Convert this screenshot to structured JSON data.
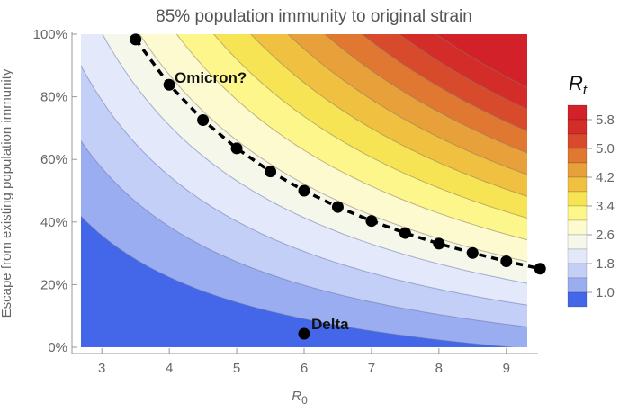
{
  "chart_data": {
    "type": "heatmap",
    "subtype": "filled-contour",
    "title": "85% population immunity to original strain",
    "xlabel": "R",
    "xlabel_subscript": "0",
    "ylabel": "Escape from existing population immunity",
    "xlim": [
      2.69,
      9.31
    ],
    "ylim": [
      0,
      1
    ],
    "x_ticks": [
      3,
      4,
      5,
      6,
      7,
      8,
      9
    ],
    "x_tick_labels": [
      "3",
      "4",
      "5",
      "6",
      "7",
      "8",
      "9"
    ],
    "y_ticks": [
      0,
      0.2,
      0.4,
      0.6,
      0.8,
      1.0
    ],
    "y_tick_labels": [
      "0%",
      "20%",
      "40%",
      "60%",
      "80%",
      "100%"
    ],
    "population_immunity": 0.85,
    "function": "Rt = R0 * (1 - immunity * (1 - escape))",
    "contour_levels": [
      1.36,
      1.91,
      2.46,
      3.01,
      3.56,
      4.11,
      4.66,
      5.21,
      5.76,
      6.31,
      6.86,
      7.41,
      7.96
    ],
    "band_colors": [
      "#4466e8",
      "#9aadf0",
      "#c3cff6",
      "#e3e9fb",
      "#f5f7ea",
      "#fdfad0",
      "#fdf68a",
      "#f7e454",
      "#f0c040",
      "#e8a03a",
      "#e07832",
      "#d84a2c",
      "#d42c28",
      "#d32129"
    ],
    "legend": {
      "title": "R",
      "title_subscript": "t",
      "tick_labels": [
        "5.8",
        "5.0",
        "4.2",
        "3.4",
        "2.6",
        "1.8",
        "1.0"
      ],
      "placement": "right"
    },
    "series": [
      {
        "name": "Omicron?",
        "style": "dashed-line-with-dots",
        "Rt": 3.45,
        "x": [
          3.5,
          4.0,
          4.5,
          5.0,
          5.5,
          6.0,
          6.5,
          7.0,
          7.5,
          8.0,
          8.5,
          9.0,
          9.5
        ]
      },
      {
        "name": "Delta",
        "style": "point",
        "x": [
          6.0
        ],
        "y": [
          0.043
        ]
      }
    ],
    "annotations": [
      {
        "text": "Omicron?",
        "x": 4.1,
        "y": 0.86
      },
      {
        "text": "Delta",
        "x": 6.1,
        "y": 0.05
      }
    ]
  }
}
